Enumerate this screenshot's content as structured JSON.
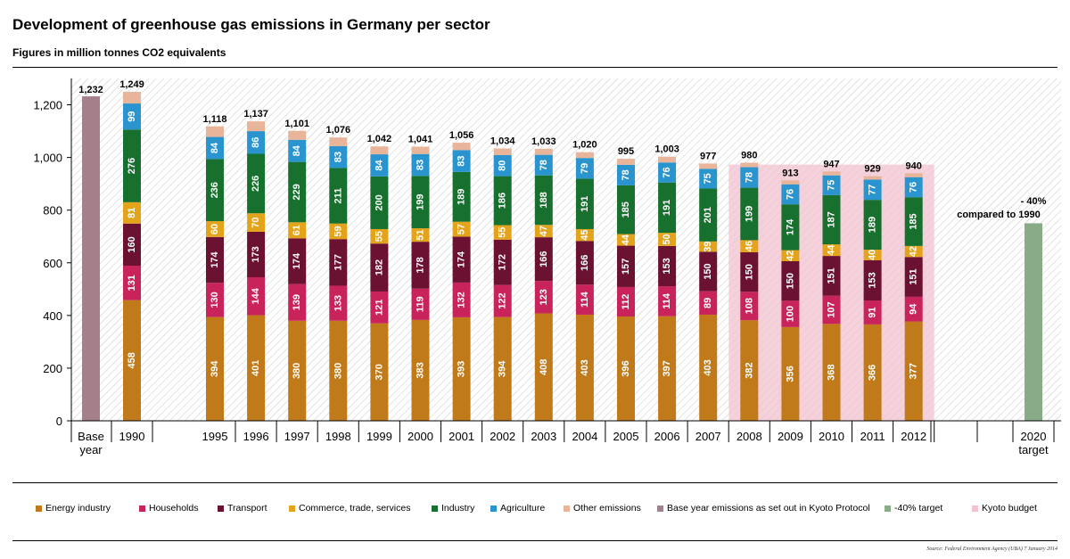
{
  "chart_data": {
    "type": "bar",
    "stacked": true,
    "title": "Development of greenhouse gas emissions in Germany per sector",
    "subtitle": "Figures in million tonnes CO2 equivalents",
    "ylim": [
      0,
      1300
    ],
    "yticks": [
      0,
      200,
      400,
      600,
      800,
      1000,
      1200
    ],
    "ytick_labels": [
      "0",
      "200",
      "400",
      "600",
      "800",
      "1,000",
      "1,200"
    ],
    "categories": [
      "1990",
      "1995",
      "1996",
      "1997",
      "1998",
      "1999",
      "2000",
      "2001",
      "2002",
      "2003",
      "2004",
      "2005",
      "2006",
      "2007",
      "2008",
      "2009",
      "2010",
      "2011",
      "2012"
    ],
    "totals": [
      "1,249",
      "1,118",
      "1,137",
      "1,101",
      "1,076",
      "1,042",
      "1,041",
      "1,056",
      "1,034",
      "1,033",
      "1,020",
      "995",
      "1,003",
      "977",
      "980",
      "913",
      "947",
      "929",
      "940"
    ],
    "series": [
      {
        "name": "Energy industry",
        "color": "#c07a1a",
        "values": [
          458,
          394,
          401,
          380,
          380,
          370,
          383,
          393,
          394,
          408,
          403,
          396,
          397,
          403,
          382,
          356,
          368,
          366,
          377
        ]
      },
      {
        "name": "Households",
        "color": "#c8235b",
        "values": [
          131,
          130,
          144,
          139,
          133,
          121,
          119,
          132,
          122,
          123,
          114,
          112,
          114,
          89,
          108,
          100,
          107,
          91,
          94
        ]
      },
      {
        "name": "Transport",
        "color": "#6b1232",
        "values": [
          160,
          174,
          173,
          174,
          177,
          182,
          178,
          174,
          172,
          166,
          166,
          157,
          153,
          150,
          150,
          150,
          151,
          153,
          151
        ]
      },
      {
        "name": "Commerce, trade, services",
        "color": "#e3a41c",
        "values": [
          81,
          60,
          70,
          61,
          59,
          55,
          51,
          57,
          55,
          47,
          45,
          44,
          50,
          39,
          46,
          42,
          44,
          40,
          42
        ]
      },
      {
        "name": "Industry",
        "color": "#17702d",
        "values": [
          276,
          236,
          226,
          229,
          211,
          200,
          199,
          189,
          186,
          188,
          191,
          185,
          191,
          201,
          199,
          174,
          187,
          189,
          185
        ]
      },
      {
        "name": "Agriculture",
        "color": "#2a94cf",
        "values": [
          99,
          84,
          86,
          84,
          83,
          84,
          83,
          83,
          80,
          78,
          79,
          78,
          76,
          75,
          78,
          76,
          75,
          77,
          76
        ]
      },
      {
        "name": "Other emissions",
        "color": "#e8b49a",
        "values": [
          44,
          40,
          37,
          34,
          33,
          30,
          28,
          28,
          25,
          23,
          22,
          23,
          22,
          20,
          17,
          15,
          15,
          13,
          15
        ]
      }
    ],
    "extra_bars": [
      {
        "category": "Base year",
        "value": 1232,
        "total_label": "1,232",
        "color": "#a3808a",
        "series": "Base year emissions as set out in Kyoto Protocol"
      },
      {
        "category": "2020 target",
        "value": 750,
        "total_label": "",
        "color": "#8aab88",
        "series": "-40% target"
      }
    ],
    "x_labels": [
      "Base year",
      "1990",
      "1995",
      "1996",
      "1997",
      "1998",
      "1999",
      "2000",
      "2001",
      "2002",
      "2003",
      "2004",
      "2005",
      "2006",
      "2007",
      "2008",
      "2009",
      "2010",
      "2011",
      "2012",
      "2020 target"
    ],
    "kyoto_budget": {
      "from": "2008",
      "to": "2012",
      "value": 973,
      "color": "#f2c2cf"
    },
    "annotation": {
      "line1": "- 40%",
      "line2": "compared to 1990"
    },
    "legend": [
      {
        "label": "Energy industry",
        "color": "#c07a1a"
      },
      {
        "label": "Households",
        "color": "#c8235b"
      },
      {
        "label": "Transport",
        "color": "#6b1232"
      },
      {
        "label": "Commerce, trade, services",
        "color": "#e3a41c"
      },
      {
        "label": "Industry",
        "color": "#17702d"
      },
      {
        "label": "Agriculture",
        "color": "#2a94cf"
      },
      {
        "label": "Other emissions",
        "color": "#e8b49a"
      },
      {
        "label": "Base year emissions as set out in Kyoto Protocol",
        "color": "#a3808a"
      },
      {
        "label": "-40% target",
        "color": "#8aab88"
      },
      {
        "label": "Kyoto budget",
        "color": "#f2c2cf"
      }
    ],
    "source": "Source: Federal Environment Agency (UBA) 7 January 2014"
  }
}
